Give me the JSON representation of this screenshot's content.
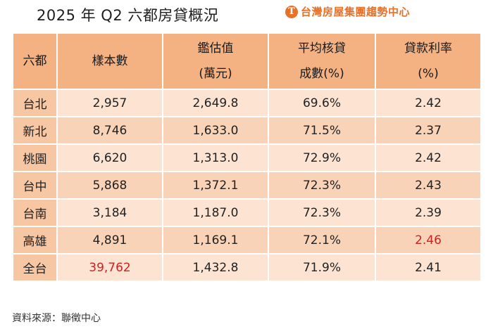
{
  "title": "2025 年 Q2 六都房貸概況",
  "brand": {
    "logo_glyph": "T",
    "name": "台灣房屋集團趨勢中心"
  },
  "table": {
    "headers": [
      {
        "line1": "六都",
        "line2": ""
      },
      {
        "line1": "樣本數",
        "line2": ""
      },
      {
        "line1": "鑑估值",
        "line2": "(萬元)"
      },
      {
        "line1": "平均核貸",
        "line2": "成數(%)"
      },
      {
        "line1": "貸款利率",
        "line2": "(%)"
      }
    ],
    "rows": [
      {
        "city": "台北",
        "samples": "2,957",
        "valuation": "2,649.8",
        "ltv": "69.6%",
        "rate": "2.42"
      },
      {
        "city": "新北",
        "samples": "8,746",
        "valuation": "1,633.0",
        "ltv": "71.5%",
        "rate": "2.37"
      },
      {
        "city": "桃園",
        "samples": "6,620",
        "valuation": "1,313.0",
        "ltv": "72.9%",
        "rate": "2.42"
      },
      {
        "city": "台中",
        "samples": "5,868",
        "valuation": "1,372.1",
        "ltv": "72.3%",
        "rate": "2.43"
      },
      {
        "city": "台南",
        "samples": "3,184",
        "valuation": "1,187.0",
        "ltv": "72.3%",
        "rate": "2.39"
      },
      {
        "city": "高雄",
        "samples": "4,891",
        "valuation": "1,169.1",
        "ltv": "72.1%",
        "rate": "2.46"
      },
      {
        "city": "全台",
        "samples": "39,762",
        "valuation": "1,432.8",
        "ltv": "71.9%",
        "rate": "2.41"
      }
    ]
  },
  "highlight_color": "#cc2222",
  "source": "資料來源：聯徵中心"
}
